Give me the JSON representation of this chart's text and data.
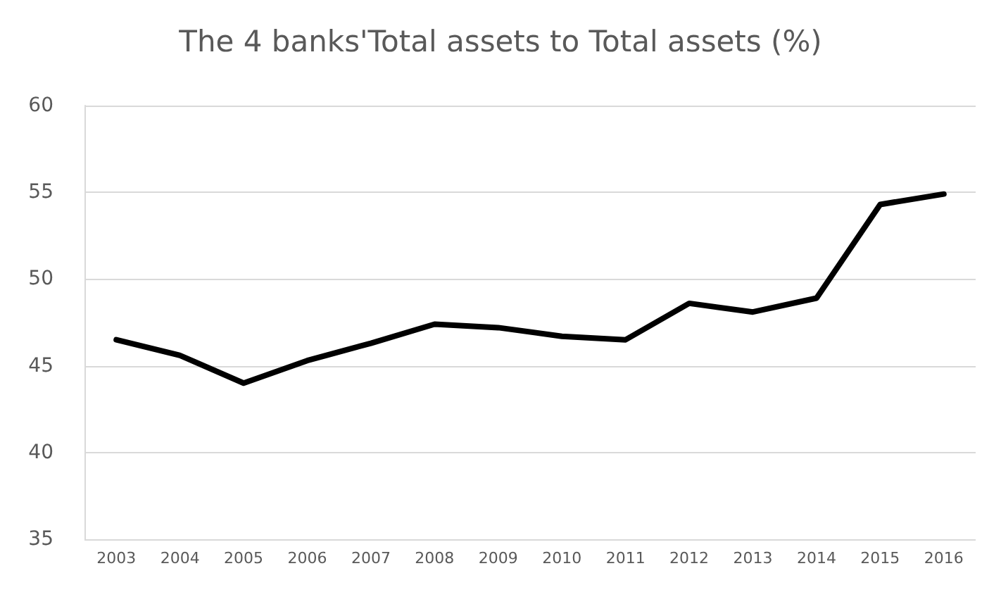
{
  "chart_data": {
    "type": "line",
    "title": "The 4 banks'Total assets to Total assets (%)",
    "categories": [
      "2003",
      "2004",
      "2005",
      "2006",
      "2007",
      "2008",
      "2009",
      "2010",
      "2011",
      "2012",
      "2013",
      "2014",
      "2015",
      "2016"
    ],
    "series": [
      {
        "color": "#000000",
        "values": [
          46.5,
          45.6,
          44.0,
          45.3,
          46.3,
          47.4,
          47.2,
          46.7,
          46.5,
          48.6,
          48.1,
          48.9,
          54.3,
          54.9
        ]
      }
    ],
    "ylim": [
      35,
      60
    ],
    "yticks": [
      35,
      40,
      45,
      50,
      55,
      60
    ],
    "grid": "y",
    "marker": "none",
    "line_style": "solid"
  }
}
